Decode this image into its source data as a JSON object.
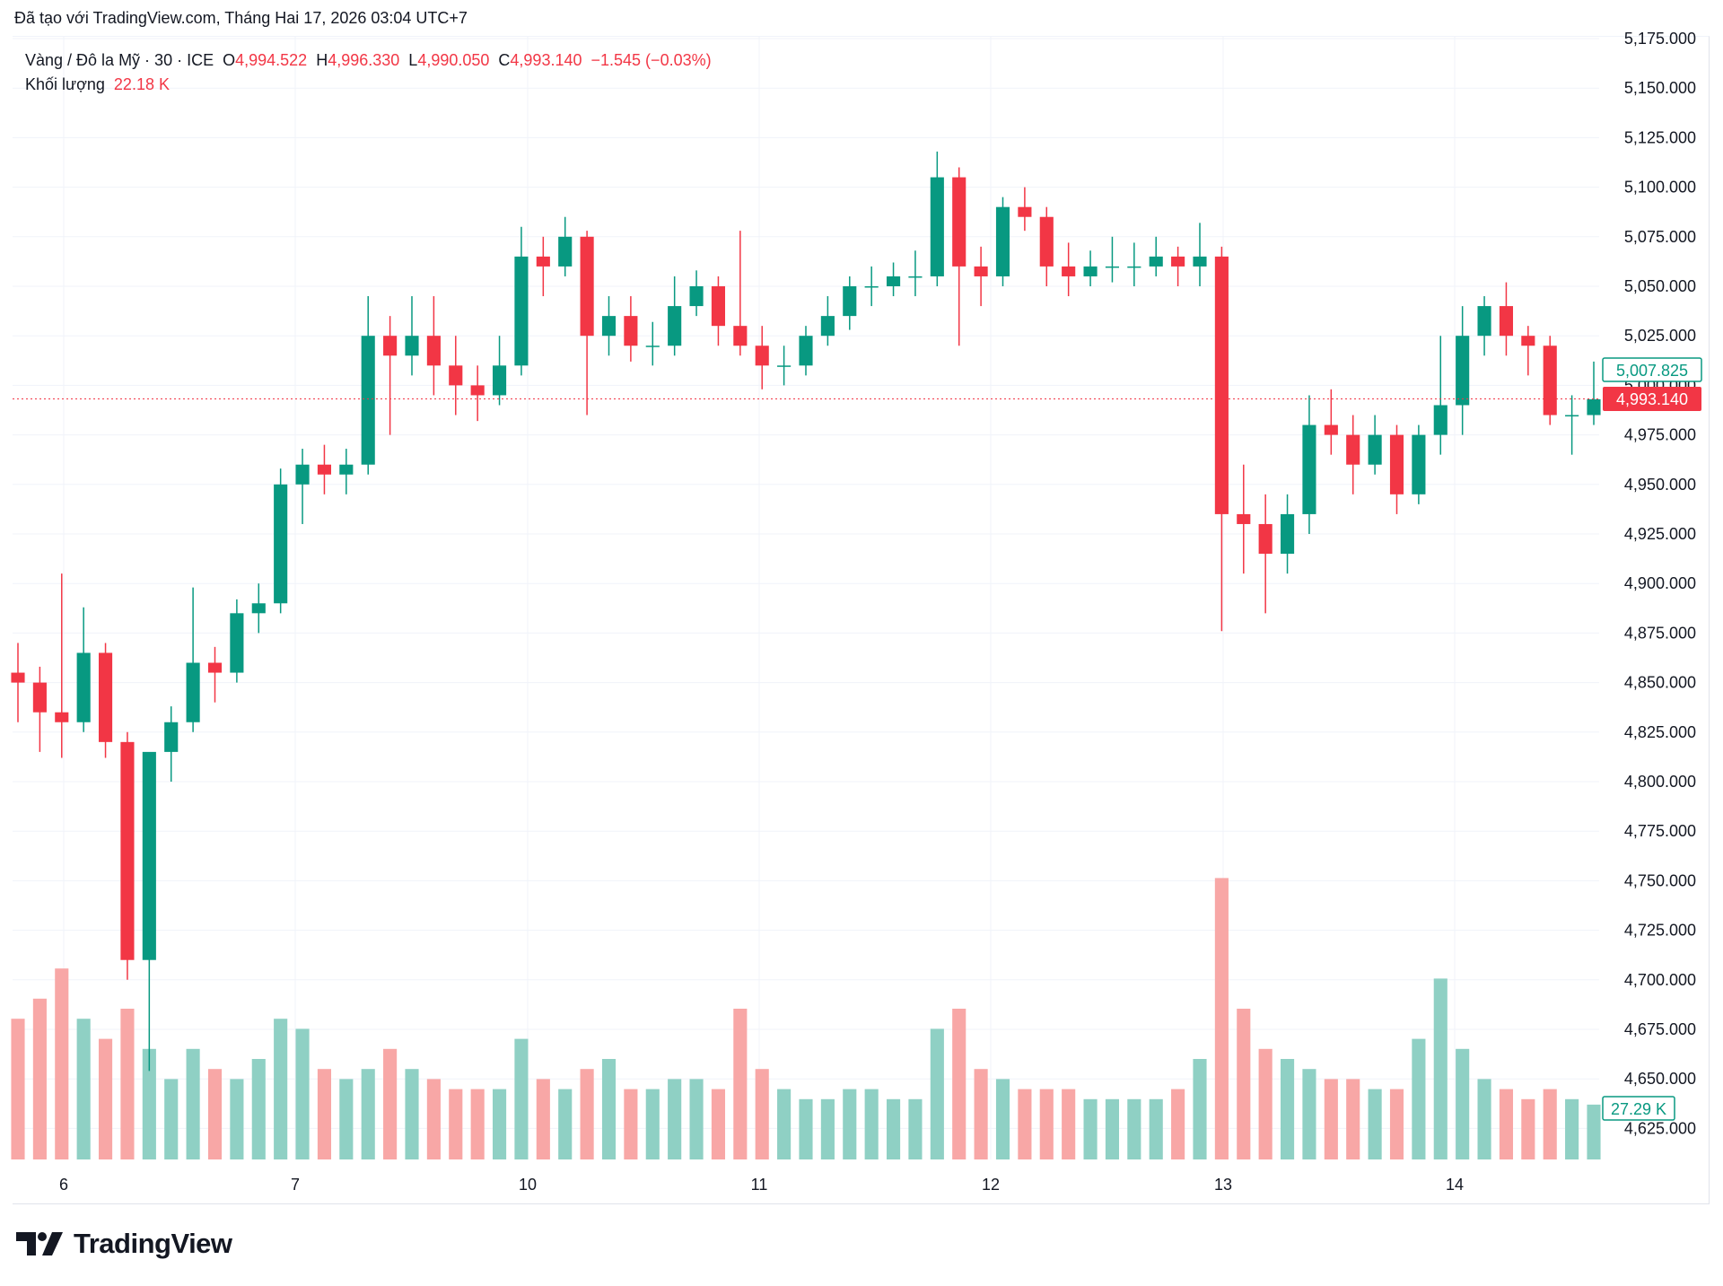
{
  "header": {
    "created_text": "Đã tạo với TradingView.com, Tháng Hai 17, 2026 03:04 UTC+7"
  },
  "legend": {
    "symbol": "Vàng / Đô la Mỹ · 30 · ICE",
    "o_label": "O",
    "o_value": "4,994.522",
    "h_label": "H",
    "h_value": "4,996.330",
    "l_label": "L",
    "l_value": "4,990.050",
    "c_label": "C",
    "c_value": "4,993.140",
    "change": "−1.545 (−0.03%)",
    "volume_label": "Khối lượng",
    "volume_value": "22.18 K"
  },
  "price_badges": {
    "last_price": "4,993.140",
    "prev_price": "5,007.825",
    "volume": "27.29 K"
  },
  "colors": {
    "up": "#089981",
    "down": "#f23645",
    "vol_up": "#8fd0c4",
    "vol_down": "#f8a7a6",
    "grid": "#f0f3fa"
  },
  "branding": {
    "logo_text": "TradingView"
  },
  "chart_data": {
    "type": "candlestick",
    "interval": "30",
    "ylim": [
      4610,
      5175
    ],
    "grid": true,
    "price_ticks": [
      "5,175.000",
      "5,150.000",
      "5,125.000",
      "5,100.000",
      "5,075.000",
      "5,050.000",
      "5,025.000",
      "5,000.000",
      "4,975.000",
      "4,950.000",
      "4,925.000",
      "4,900.000",
      "4,875.000",
      "4,850.000",
      "4,825.000",
      "4,800.000",
      "4,775.000",
      "4,750.000",
      "4,725.000",
      "4,700.000",
      "4,675.000",
      "4,650.000",
      "4,625.000"
    ],
    "x_ticks": [
      "6",
      "7",
      "10",
      "11",
      "12",
      "13",
      "14"
    ],
    "last_price": 4993.14,
    "candles_ohlcv": [
      [
        4855,
        4870,
        4830,
        4850,
        70
      ],
      [
        4850,
        4858,
        4815,
        4835,
        80
      ],
      [
        4835,
        4905,
        4812,
        4830,
        95
      ],
      [
        4830,
        4888,
        4825,
        4865,
        70
      ],
      [
        4865,
        4870,
        4812,
        4820,
        60
      ],
      [
        4820,
        4825,
        4700,
        4710,
        75
      ],
      [
        4710,
        4765,
        4654,
        4815,
        55
      ],
      [
        4815,
        4838,
        4800,
        4830,
        40
      ],
      [
        4830,
        4898,
        4825,
        4860,
        55
      ],
      [
        4860,
        4868,
        4840,
        4855,
        45
      ],
      [
        4855,
        4892,
        4850,
        4885,
        40
      ],
      [
        4885,
        4900,
        4875,
        4890,
        50
      ],
      [
        4890,
        4958,
        4885,
        4950,
        70
      ],
      [
        4950,
        4968,
        4930,
        4960,
        65
      ],
      [
        4960,
        4970,
        4945,
        4955,
        45
      ],
      [
        4955,
        4968,
        4945,
        4960,
        40
      ],
      [
        4960,
        5045,
        4955,
        5025,
        45
      ],
      [
        5025,
        5035,
        4975,
        5015,
        55
      ],
      [
        5015,
        5045,
        5005,
        5025,
        45
      ],
      [
        5025,
        5045,
        4995,
        5010,
        40
      ],
      [
        5010,
        5025,
        4985,
        5000,
        35
      ],
      [
        5000,
        5010,
        4982,
        4995,
        35
      ],
      [
        4995,
        5025,
        4990,
        5010,
        35
      ],
      [
        5010,
        5080,
        5005,
        5065,
        60
      ],
      [
        5065,
        5075,
        5045,
        5060,
        40
      ],
      [
        5060,
        5085,
        5055,
        5075,
        35
      ],
      [
        5075,
        5078,
        4985,
        5025,
        45
      ],
      [
        5025,
        5045,
        5015,
        5035,
        50
      ],
      [
        5035,
        5045,
        5012,
        5020,
        35
      ],
      [
        5020,
        5032,
        5010,
        5020,
        35
      ],
      [
        5020,
        5055,
        5015,
        5040,
        40
      ],
      [
        5040,
        5058,
        5035,
        5050,
        40
      ],
      [
        5050,
        5055,
        5020,
        5030,
        35
      ],
      [
        5030,
        5078,
        5015,
        5020,
        75
      ],
      [
        5020,
        5030,
        4998,
        5010,
        45
      ],
      [
        5010,
        5020,
        5000,
        5010,
        35
      ],
      [
        5010,
        5030,
        5005,
        5025,
        30
      ],
      [
        5025,
        5045,
        5020,
        5035,
        30
      ],
      [
        5035,
        5055,
        5028,
        5050,
        35
      ],
      [
        5050,
        5060,
        5040,
        5050,
        35
      ],
      [
        5050,
        5062,
        5045,
        5055,
        30
      ],
      [
        5055,
        5068,
        5045,
        5055,
        30
      ],
      [
        5055,
        5118,
        5050,
        5105,
        65
      ],
      [
        5105,
        5110,
        5020,
        5060,
        75
      ],
      [
        5060,
        5070,
        5040,
        5055,
        45
      ],
      [
        5055,
        5095,
        5050,
        5090,
        40
      ],
      [
        5090,
        5100,
        5078,
        5085,
        35
      ],
      [
        5085,
        5090,
        5050,
        5060,
        35
      ],
      [
        5060,
        5072,
        5045,
        5055,
        35
      ],
      [
        5055,
        5068,
        5050,
        5060,
        30
      ],
      [
        5060,
        5075,
        5052,
        5060,
        30
      ],
      [
        5060,
        5072,
        5050,
        5060,
        30
      ],
      [
        5060,
        5075,
        5055,
        5065,
        30
      ],
      [
        5065,
        5070,
        5050,
        5060,
        35
      ],
      [
        5060,
        5082,
        5050,
        5065,
        50
      ],
      [
        5065,
        5070,
        4876,
        4935,
        140
      ],
      [
        4935,
        4960,
        4905,
        4930,
        75
      ],
      [
        4930,
        4945,
        4885,
        4915,
        55
      ],
      [
        4915,
        4945,
        4905,
        4935,
        50
      ],
      [
        4935,
        4995,
        4925,
        4980,
        45
      ],
      [
        4980,
        4998,
        4965,
        4975,
        40
      ],
      [
        4975,
        4985,
        4945,
        4960,
        40
      ],
      [
        4960,
        4985,
        4955,
        4975,
        35
      ],
      [
        4975,
        4980,
        4935,
        4945,
        35
      ],
      [
        4945,
        4980,
        4940,
        4975,
        60
      ],
      [
        4975,
        5025,
        4965,
        4990,
        90
      ],
      [
        4990,
        5040,
        4975,
        5025,
        55
      ],
      [
        5025,
        5045,
        5015,
        5040,
        40
      ],
      [
        5040,
        5052,
        5015,
        5025,
        35
      ],
      [
        5025,
        5030,
        5005,
        5020,
        30
      ],
      [
        5020,
        5025,
        4980,
        4985,
        35
      ],
      [
        4985,
        4995,
        4965,
        4985,
        30
      ],
      [
        4985,
        5012,
        4980,
        4993,
        27.29
      ]
    ]
  }
}
